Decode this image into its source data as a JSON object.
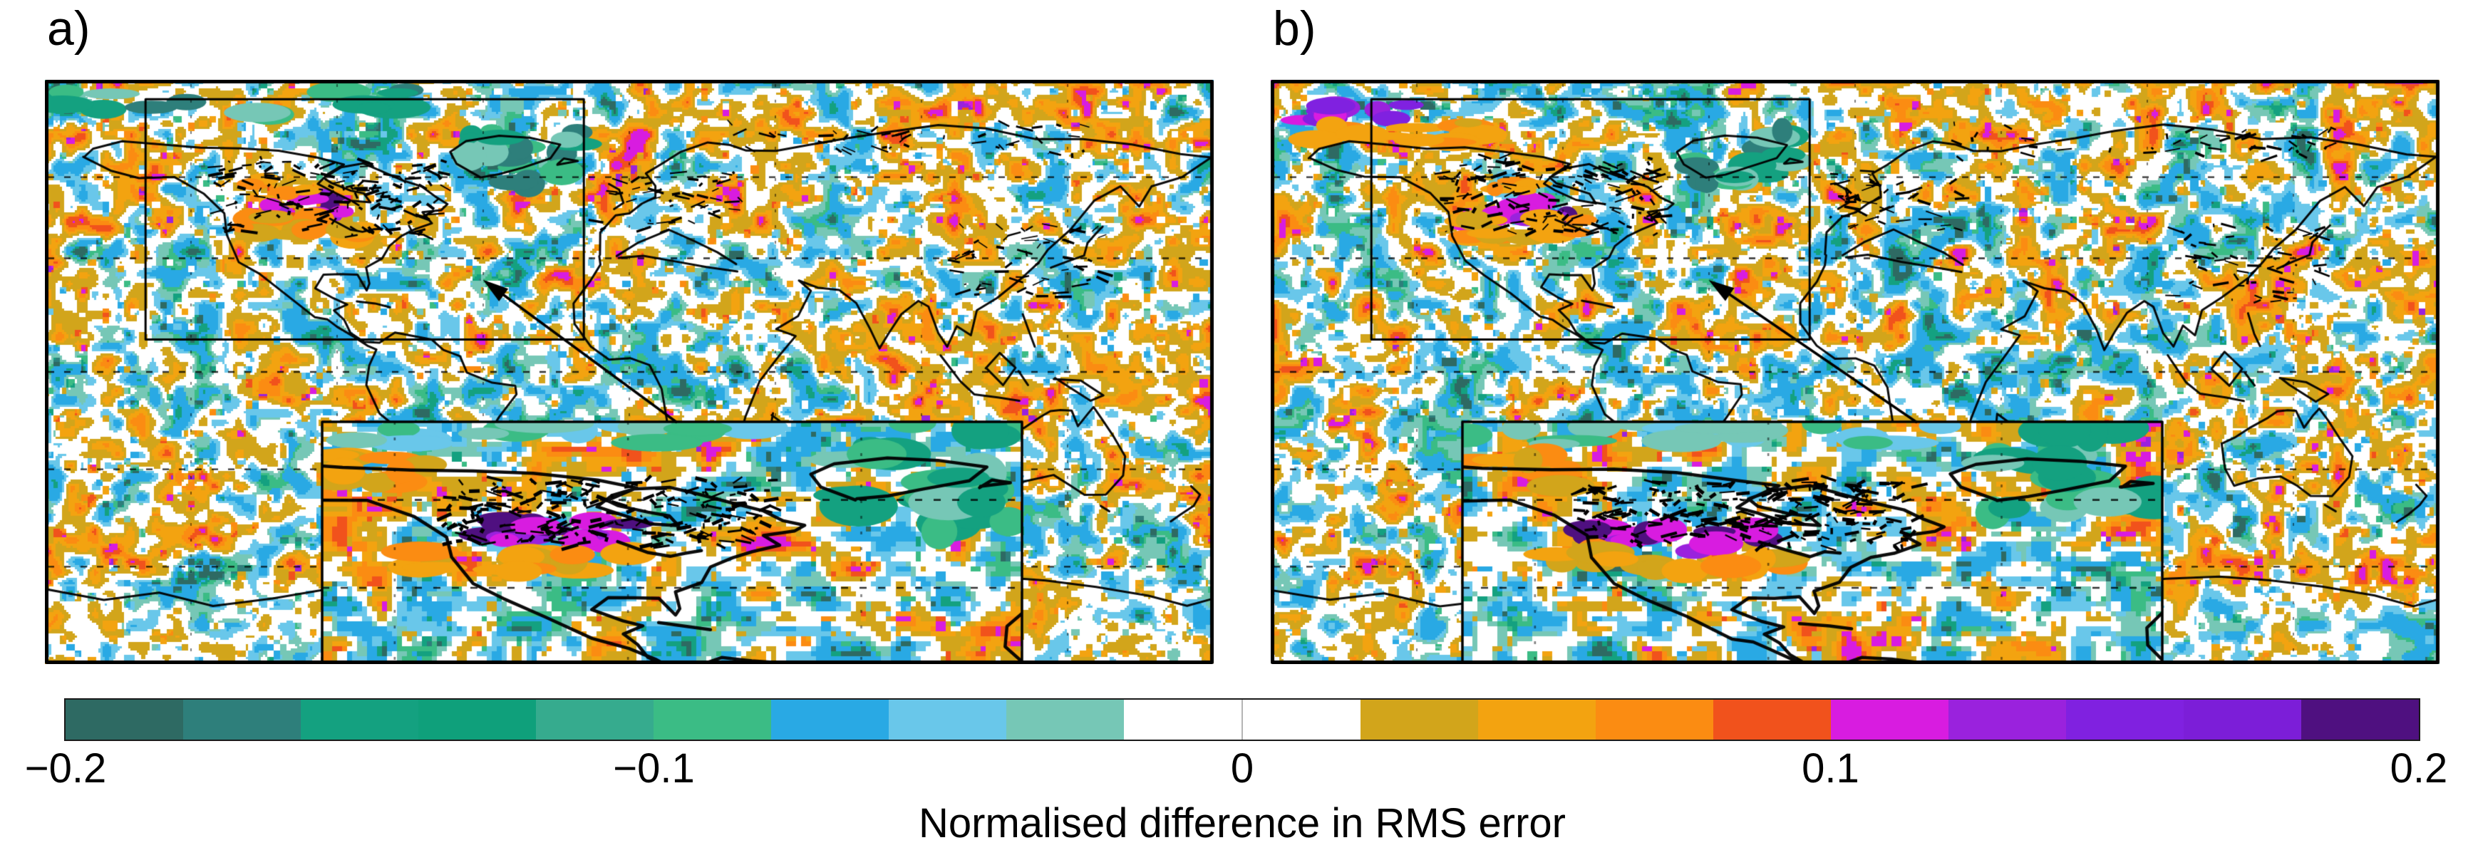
{
  "chart_data": {
    "type": "heatmap",
    "title": "",
    "panels": [
      {
        "label": "a)",
        "description": "Global map of normalised difference in RMS error, with rectangle over North America linked by arrow to a zoomed inset"
      },
      {
        "label": "b)",
        "description": "Global map of normalised difference in RMS error, with rectangle over North America linked by arrow to a zoomed inset"
      }
    ],
    "colorbar": {
      "label": "Normalised difference in RMS error",
      "min": -0.2,
      "max": 0.2,
      "n_segments": 20,
      "tick_values": [
        -0.2,
        -0.1,
        0,
        0.1,
        0.2
      ],
      "tick_labels": [
        "−0.2",
        "−0.1",
        "0",
        "0.1",
        "0.2"
      ],
      "segment_colors": [
        "#2e6a63",
        "#2e7f7b",
        "#14a180",
        "#0fa07b",
        "#36ab8e",
        "#3bbc85",
        "#29a9e4",
        "#69c7ea",
        "#76c7b6",
        "#ffffff",
        "#ffffff",
        "#d2a51b",
        "#f3a310",
        "#fb8c12",
        "#f1521c",
        "#d81ce0",
        "#9a22dd",
        "#8021e0",
        "#7c1ed8",
        "#4f1080"
      ]
    },
    "map": {
      "projection": "equirectangular",
      "lon_range": [
        -180,
        180
      ],
      "lat_range": [
        -90,
        90
      ],
      "gridlines": {
        "style": "dashed",
        "lat_deg": [
          60,
          35,
          0,
          -30,
          -60
        ],
        "lon_deg": [
          -135,
          -90,
          -45,
          0,
          45,
          90,
          135
        ]
      },
      "inset": {
        "region": "North America zoom",
        "lon_range": [
          -149,
          -14
        ],
        "lat_range": [
          10,
          84
        ]
      }
    },
    "annotations": [
      "selection rectangle over North America",
      "arrow from zoomed inset to selection rectangle",
      "zoomed inset panel at lower part of each map"
    ]
  }
}
